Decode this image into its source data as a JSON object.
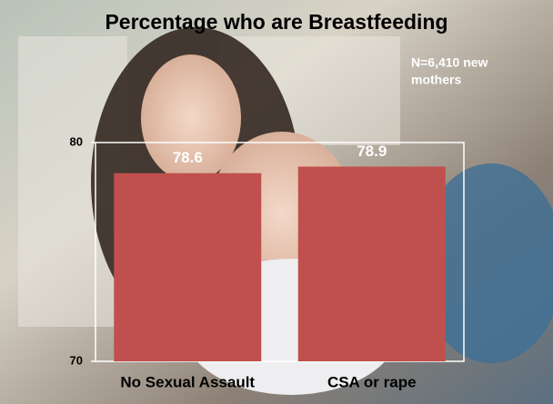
{
  "chart_data": {
    "type": "bar",
    "title": "Percentage who are Breastfeeding",
    "annotation": [
      "N=6,410 new",
      "mothers"
    ],
    "categories": [
      "No Sexual Assault",
      "CSA or rape"
    ],
    "values": [
      78.6,
      78.9
    ],
    "color": "#c0504d",
    "ylim": [
      70,
      80
    ],
    "yticks": [
      70,
      80
    ]
  }
}
